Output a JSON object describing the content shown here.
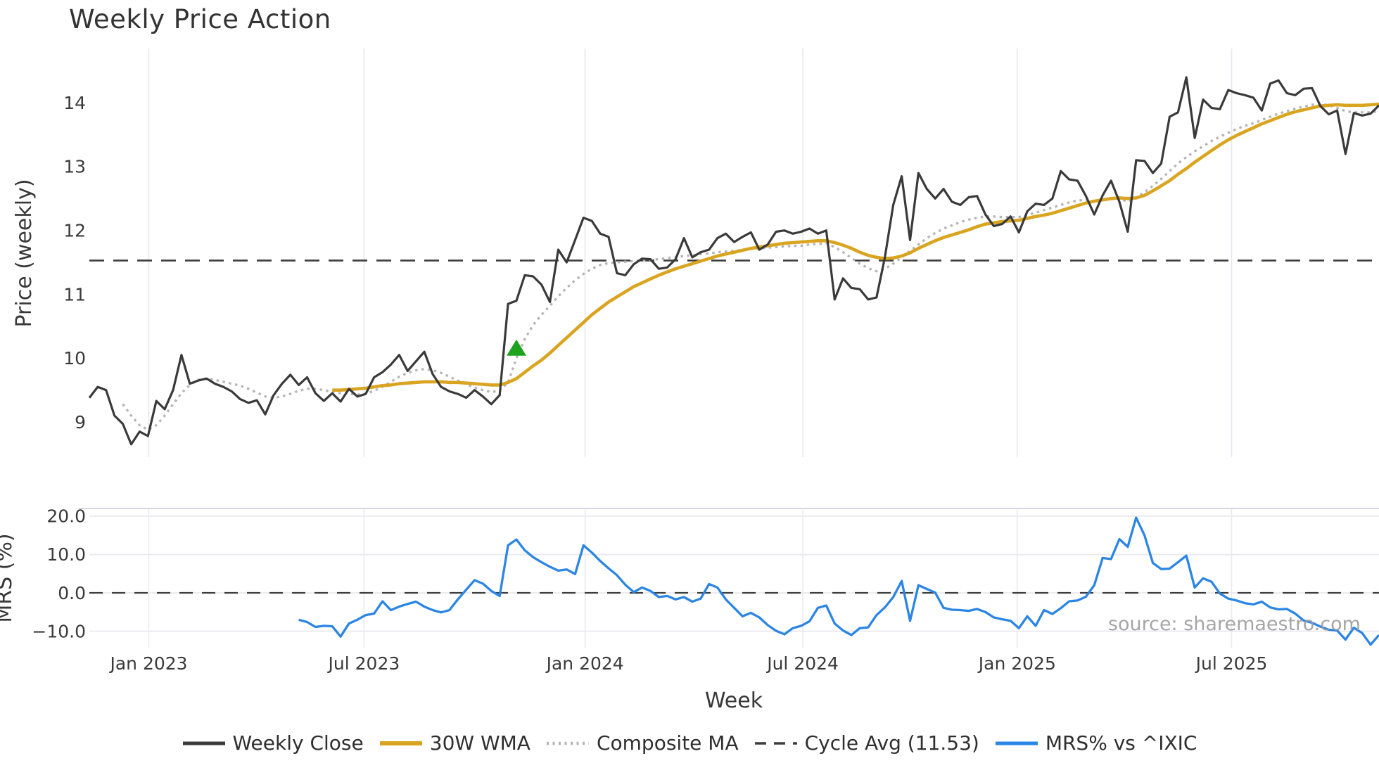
{
  "title": "Weekly Price Action",
  "watermark": "source: sharemaestro.com",
  "colors": {
    "weekly_close": "#3a3a3a",
    "wma30": "#d9a521",
    "composite_ma": "#b5b5b5",
    "cycle_avg": "#3d3d3d",
    "mrs": "#2b85e4",
    "signal_marker": "#1fa31f",
    "gridline": "#e8e8ee",
    "spine": "#d6d6de",
    "tick_text": "#3a3a3a",
    "label_text": "#383838"
  },
  "legend": {
    "items": [
      {
        "label": "Weekly Close",
        "style": "solid",
        "color": "#3a3a3a"
      },
      {
        "label": "30W WMA",
        "style": "solid",
        "color": "#d9a521"
      },
      {
        "label": "Composite MA",
        "style": "dotted",
        "color": "#b5b5b5"
      },
      {
        "label": "Cycle Avg (11.53)",
        "style": "dashed",
        "color": "#3d3d3d"
      },
      {
        "label": "MRS% vs ^IXIC",
        "style": "solid",
        "color": "#2b85e4"
      }
    ]
  },
  "chart_data": [
    {
      "type": "line",
      "title": "Weekly Price Action",
      "xlabel": "Week",
      "ylabel": "Price (weekly)",
      "ylim": [
        8.45,
        14.85
      ],
      "yticks": [
        {
          "value": 14,
          "label": "14"
        },
        {
          "value": 13,
          "label": "13"
        },
        {
          "value": 12,
          "label": "12"
        },
        {
          "value": 11,
          "label": "11"
        },
        {
          "value": 10,
          "label": "10"
        },
        {
          "value": 9,
          "label": "9"
        }
      ],
      "n_points": 155,
      "x_unit": "week-index",
      "xticks": [
        {
          "pos": 7.1,
          "label": "Jan 2023"
        },
        {
          "pos": 32.8,
          "label": "Jul 2023"
        },
        {
          "pos": 59.2,
          "label": "Jan 2024"
        },
        {
          "pos": 85.2,
          "label": "Jul 2024"
        },
        {
          "pos": 110.8,
          "label": "Jan 2025"
        },
        {
          "pos": 136.4,
          "label": "Jul 2025"
        }
      ],
      "grid": "vertical-only",
      "legend_position": "bottom-center",
      "series": [
        {
          "name": "Weekly Close",
          "style": "solid",
          "width": 3.2,
          "color": "#3a3a3a",
          "start_index": 0,
          "values": [
            9.38,
            9.55,
            9.5,
            9.1,
            8.97,
            8.65,
            8.85,
            8.78,
            9.33,
            9.2,
            9.5,
            10.05,
            9.6,
            9.65,
            9.68,
            9.6,
            9.55,
            9.48,
            9.36,
            9.3,
            9.34,
            9.12,
            9.42,
            9.6,
            9.74,
            9.58,
            9.7,
            9.45,
            9.33,
            9.45,
            9.32,
            9.52,
            9.4,
            9.44,
            9.7,
            9.78,
            9.9,
            10.05,
            9.8,
            9.95,
            10.1,
            9.75,
            9.55,
            9.48,
            9.44,
            9.38,
            9.5,
            9.4,
            9.28,
            9.42,
            10.85,
            10.9,
            11.3,
            11.28,
            11.15,
            10.88,
            11.7,
            11.5,
            11.85,
            12.2,
            12.15,
            11.95,
            11.9,
            11.33,
            11.3,
            11.47,
            11.56,
            11.55,
            11.4,
            11.42,
            11.55,
            11.88,
            11.58,
            11.66,
            11.7,
            11.88,
            11.95,
            11.82,
            11.9,
            11.97,
            11.7,
            11.78,
            11.98,
            12.0,
            11.95,
            11.98,
            12.03,
            11.95,
            12.0,
            10.92,
            11.25,
            11.1,
            11.08,
            10.92,
            10.95,
            11.58,
            12.4,
            12.85,
            11.85,
            12.9,
            12.65,
            12.5,
            12.65,
            12.45,
            12.4,
            12.52,
            12.54,
            12.25,
            12.07,
            12.1,
            12.22,
            11.97,
            12.3,
            12.42,
            12.4,
            12.5,
            12.93,
            12.8,
            12.78,
            12.54,
            12.25,
            12.55,
            12.78,
            12.45,
            11.98,
            13.1,
            13.09,
            12.9,
            13.05,
            13.78,
            13.85,
            14.4,
            13.45,
            14.05,
            13.92,
            13.9,
            14.2,
            14.15,
            14.12,
            14.08,
            13.88,
            14.3,
            14.35,
            14.15,
            14.12,
            14.22,
            14.23,
            13.95,
            13.82,
            13.88,
            13.2,
            13.84,
            13.8,
            13.83,
            13.96
          ]
        },
        {
          "name": "30W WMA",
          "style": "solid",
          "width": 4.6,
          "color": "#d9a521",
          "start_index": 29,
          "values": [
            9.5,
            9.5,
            9.51,
            9.52,
            9.53,
            9.55,
            9.57,
            9.58,
            9.6,
            9.61,
            9.62,
            9.63,
            9.63,
            9.63,
            9.62,
            9.62,
            9.61,
            9.6,
            9.59,
            9.58,
            9.58,
            9.62,
            9.68,
            9.78,
            9.88,
            9.97,
            10.08,
            10.2,
            10.32,
            10.44,
            10.56,
            10.68,
            10.78,
            10.88,
            10.96,
            11.04,
            11.12,
            11.18,
            11.24,
            11.3,
            11.35,
            11.4,
            11.44,
            11.48,
            11.52,
            11.56,
            11.6,
            11.63,
            11.66,
            11.69,
            11.72,
            11.74,
            11.76,
            11.78,
            11.8,
            11.81,
            11.82,
            11.83,
            11.84,
            11.84,
            11.81,
            11.77,
            11.72,
            11.66,
            11.61,
            11.58,
            11.56,
            11.57,
            11.6,
            11.65,
            11.72,
            11.78,
            11.84,
            11.89,
            11.93,
            11.97,
            12.01,
            12.06,
            12.1,
            12.12,
            12.14,
            12.15,
            12.16,
            12.19,
            12.22,
            12.24,
            12.27,
            12.31,
            12.35,
            12.39,
            12.43,
            12.46,
            12.48,
            12.5,
            12.51,
            12.5,
            12.51,
            12.55,
            12.62,
            12.7,
            12.78,
            12.88,
            12.97,
            13.07,
            13.16,
            13.25,
            13.34,
            13.42,
            13.49,
            13.55,
            13.61,
            13.67,
            13.72,
            13.77,
            13.82,
            13.86,
            13.89,
            13.92,
            13.95,
            13.96,
            13.97,
            13.96,
            13.96,
            13.96,
            13.97,
            13.98
          ]
        },
        {
          "name": "Composite MA",
          "style": "dotted",
          "width": 3.3,
          "color": "#b5b5b5",
          "start_index": 4,
          "values": [
            9.28,
            9.1,
            8.95,
            8.88,
            8.95,
            9.1,
            9.28,
            9.45,
            9.58,
            9.66,
            9.68,
            9.66,
            9.63,
            9.6,
            9.57,
            9.52,
            9.46,
            9.4,
            9.38,
            9.4,
            9.44,
            9.49,
            9.52,
            9.52,
            9.5,
            9.47,
            9.45,
            9.44,
            9.43,
            9.44,
            9.49,
            9.55,
            9.63,
            9.71,
            9.77,
            9.81,
            9.83,
            9.81,
            9.77,
            9.71,
            9.65,
            9.59,
            9.54,
            9.5,
            9.47,
            9.49,
            9.62,
            10.0,
            10.3,
            10.52,
            10.68,
            10.82,
            10.97,
            11.1,
            11.22,
            11.32,
            11.4,
            11.46,
            11.49,
            11.5,
            11.51,
            11.52,
            11.53,
            11.54,
            11.55,
            11.57,
            11.58,
            11.6,
            11.61,
            11.63,
            11.64,
            11.66,
            11.67,
            11.68,
            11.7,
            11.71,
            11.72,
            11.73,
            11.74,
            11.75,
            11.76,
            11.76,
            11.78,
            11.79,
            11.8,
            11.74,
            11.66,
            11.57,
            11.48,
            11.41,
            11.36,
            11.4,
            11.48,
            11.58,
            11.68,
            11.78,
            11.88,
            11.96,
            12.03,
            12.08,
            12.13,
            12.17,
            12.2,
            12.22,
            12.22,
            12.21,
            12.21,
            12.21,
            12.24,
            12.28,
            12.32,
            12.36,
            12.4,
            12.44,
            12.47,
            12.48,
            12.46,
            12.47,
            12.49,
            12.5,
            12.45,
            12.52,
            12.6,
            12.7,
            12.81,
            12.93,
            13.05,
            13.15,
            13.24,
            13.32,
            13.4,
            13.47,
            13.53,
            13.59,
            13.64,
            13.68,
            13.73,
            13.78,
            13.83,
            13.87,
            13.91,
            13.94,
            13.97,
            13.98,
            13.96,
            13.92,
            13.87,
            13.85,
            13.85,
            13.85,
            13.87
          ]
        },
        {
          "name": "Cycle Avg (11.53)",
          "style": "dashed",
          "width": 2.6,
          "color": "#3d3d3d",
          "constant_value": 11.53
        }
      ],
      "markers": [
        {
          "name": "buy-signal-triangle",
          "shape": "triangle-up",
          "color": "#1fa31f",
          "index": 51,
          "value": 10.16
        }
      ]
    },
    {
      "type": "line",
      "xlabel": "Week",
      "ylabel": "MRS (%)",
      "ylim": [
        -14.3,
        22.0
      ],
      "yticks": [
        {
          "value": 20,
          "label": "20.0"
        },
        {
          "value": 10,
          "label": "10.0"
        },
        {
          "value": 0,
          "label": "0.0"
        },
        {
          "value": -10,
          "label": "−10.0"
        }
      ],
      "grid": "horizontal-and-vertical",
      "series": [
        {
          "name": "MRS% vs ^IXIC",
          "style": "solid",
          "width": 3.3,
          "color": "#2b85e4",
          "start_index": 25,
          "values": [
            -7.0,
            -7.6,
            -8.9,
            -8.6,
            -8.7,
            -11.4,
            -8.0,
            -7.0,
            -5.8,
            -5.4,
            -2.2,
            -4.5,
            -3.6,
            -2.9,
            -2.3,
            -3.6,
            -4.5,
            -5.1,
            -4.5,
            -1.7,
            0.8,
            3.3,
            2.4,
            0.5,
            -0.8,
            12.4,
            13.9,
            11.1,
            9.3,
            8.0,
            6.8,
            5.8,
            6.1,
            4.9,
            12.4,
            10.5,
            8.3,
            6.4,
            4.6,
            2.1,
            0.2,
            1.4,
            0.5,
            -1.1,
            -0.8,
            -1.7,
            -1.1,
            -2.3,
            -1.5,
            2.3,
            1.4,
            -1.7,
            -3.9,
            -6.1,
            -5.2,
            -6.4,
            -8.4,
            -9.9,
            -10.8,
            -9.2,
            -8.6,
            -7.4,
            -3.9,
            -3.3,
            -8.0,
            -9.8,
            -11.0,
            -9.2,
            -9.0,
            -5.8,
            -3.8,
            -1.1,
            3.1,
            -7.3,
            2.0,
            1.0,
            0.1,
            -3.9,
            -4.4,
            -4.5,
            -4.7,
            -4.2,
            -5.0,
            -6.4,
            -6.9,
            -7.3,
            -9.2,
            -6.1,
            -8.6,
            -4.5,
            -5.5,
            -4.0,
            -2.2,
            -2.0,
            -1.0,
            2.0,
            9.1,
            8.8,
            14.0,
            12.0,
            19.6,
            15.0,
            7.8,
            6.2,
            6.3,
            8.0,
            9.7,
            1.4,
            3.8,
            2.9,
            -0.2,
            -1.5,
            -2.0,
            -2.7,
            -3.0,
            -2.3,
            -3.8,
            -4.3,
            -4.2,
            -5.4,
            -7.2,
            -7.8,
            -8.8,
            -9.6,
            -9.8,
            -12.2,
            -9.1,
            -10.5,
            -13.5,
            -11.0
          ]
        },
        {
          "name": "zero-line",
          "style": "dashed",
          "width": 2.2,
          "color": "#3d3d3d",
          "constant_value": 0
        }
      ]
    }
  ]
}
